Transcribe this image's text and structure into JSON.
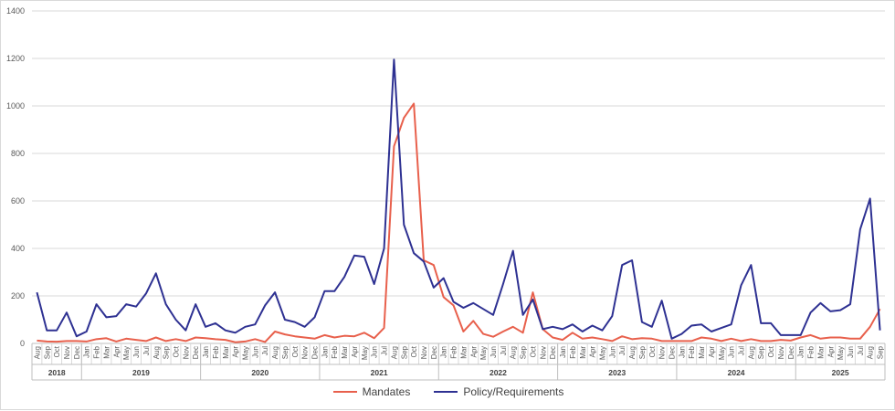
{
  "chart_data": {
    "type": "line",
    "ylim": [
      0,
      1400
    ],
    "yticks": [
      "0",
      "200",
      "400",
      "600",
      "800",
      "1000",
      "1200",
      "1400"
    ],
    "years": [
      {
        "label": "2018",
        "count": 5
      },
      {
        "label": "2019",
        "count": 12
      },
      {
        "label": "2020",
        "count": 12
      },
      {
        "label": "2021",
        "count": 12
      },
      {
        "label": "2022",
        "count": 12
      },
      {
        "label": "2023",
        "count": 12
      },
      {
        "label": "2024",
        "count": 12
      },
      {
        "label": "2025",
        "count": 9
      }
    ],
    "months": [
      "Aug",
      "Sep",
      "Oct",
      "Nov",
      "Dec",
      "Jan",
      "Feb",
      "Mar",
      "Apr",
      "May",
      "Jun",
      "Jul",
      "Aug",
      "Sep",
      "Oct",
      "Nov",
      "Dec",
      "Jan",
      "Feb",
      "Mar",
      "Apr",
      "May",
      "Jun",
      "Jul",
      "Aug",
      "Sep",
      "Oct",
      "Nov",
      "Dec",
      "Jan",
      "Feb",
      "Mar",
      "Apr",
      "May",
      "Jun",
      "Jul",
      "Aug",
      "Sep",
      "Oct",
      "Nov",
      "Dec",
      "Jan",
      "Feb",
      "Mar",
      "Apr",
      "May",
      "Jun",
      "Jul",
      "Aug",
      "Sep",
      "Oct",
      "Nov",
      "Dec",
      "Jan",
      "Feb",
      "Mar",
      "Apr",
      "May",
      "Jun",
      "Jul",
      "Aug",
      "Sep",
      "Oct",
      "Nov",
      "Dec",
      "Jan",
      "Feb",
      "Mar",
      "Apr",
      "May",
      "Jun",
      "Jul",
      "Aug",
      "Sep",
      "Oct",
      "Nov",
      "Dec",
      "Jan",
      "Feb",
      "Mar",
      "Apr",
      "May",
      "Jun",
      "Jul",
      "Aug",
      "Sep"
    ],
    "series": [
      {
        "name": "Mandates",
        "color": "#e8604c",
        "values": [
          12,
          8,
          7,
          10,
          10,
          8,
          18,
          22,
          8,
          20,
          15,
          10,
          25,
          10,
          18,
          10,
          25,
          22,
          18,
          15,
          5,
          8,
          18,
          6,
          50,
          38,
          30,
          25,
          20,
          35,
          25,
          32,
          30,
          45,
          22,
          65,
          830,
          950,
          1010,
          350,
          330,
          195,
          160,
          50,
          95,
          40,
          28,
          50,
          70,
          45,
          215,
          60,
          25,
          15,
          45,
          20,
          25,
          18,
          10,
          30,
          18,
          22,
          20,
          10,
          10,
          10,
          10,
          25,
          20,
          10,
          20,
          10,
          18,
          10,
          10,
          15,
          12,
          25,
          35,
          20,
          25,
          25,
          20,
          20,
          70,
          145
        ]
      },
      {
        "name": "Policy/Requirements",
        "color": "#2e3192",
        "values": [
          215,
          55,
          55,
          130,
          30,
          50,
          165,
          110,
          115,
          165,
          155,
          210,
          295,
          165,
          100,
          55,
          165,
          70,
          85,
          55,
          45,
          70,
          80,
          160,
          215,
          100,
          90,
          70,
          110,
          220,
          220,
          280,
          370,
          365,
          250,
          400,
          1195,
          500,
          380,
          345,
          235,
          275,
          175,
          150,
          170,
          145,
          120,
          250,
          390,
          120,
          185,
          60,
          70,
          60,
          80,
          50,
          75,
          55,
          115,
          330,
          350,
          90,
          70,
          180,
          20,
          40,
          75,
          80,
          50,
          65,
          80,
          245,
          330,
          85,
          85,
          35,
          35,
          35,
          130,
          170,
          135,
          140,
          165,
          480,
          610,
          55
        ]
      }
    ]
  },
  "legend": {
    "mandates_label": "Mandates",
    "policy_label": "Policy/Requirements"
  }
}
